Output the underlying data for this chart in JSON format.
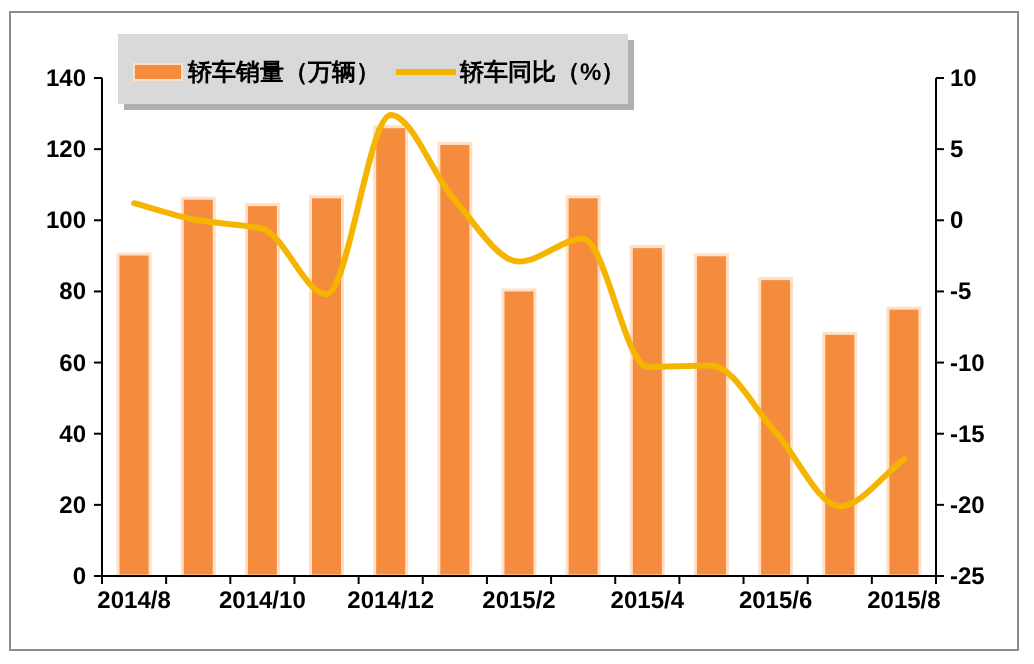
{
  "chart_data": {
    "type": "bar",
    "legend": "top left",
    "grid": false,
    "categories": [
      "2014/8",
      null,
      "2014/10",
      null,
      "2014/12",
      null,
      "2015/2",
      null,
      "2015/4",
      null,
      "2015/6",
      null,
      "2015/8"
    ],
    "series": [
      {
        "name": "轿车销量（万辆）",
        "color": "#f58b3c",
        "values": [
          90.5,
          106.2,
          104.4,
          106.6,
          126.3,
          121.6,
          80.4,
          106.6,
          92.6,
          90.3,
          83.6,
          68.2,
          75.3
        ]
      },
      {
        "name": "轿车同比（%）",
        "type": "line",
        "axis": "y2",
        "color": "#f5b400",
        "marker": "none",
        "values": [
          1.2,
          0,
          -0.6,
          -5.2,
          7.4,
          1.4,
          -2.9,
          -1.3,
          -10.3,
          -10.2,
          -14.9,
          -20.1,
          -16.8
        ]
      }
    ],
    "ylim": [
      0,
      140
    ],
    "yticks": [
      0,
      20,
      40,
      60,
      80,
      100,
      120,
      140
    ],
    "y2lim": [
      -25,
      10
    ],
    "y2ticks": [
      -25,
      -20,
      -15,
      -10,
      -5,
      0,
      5,
      10
    ]
  }
}
